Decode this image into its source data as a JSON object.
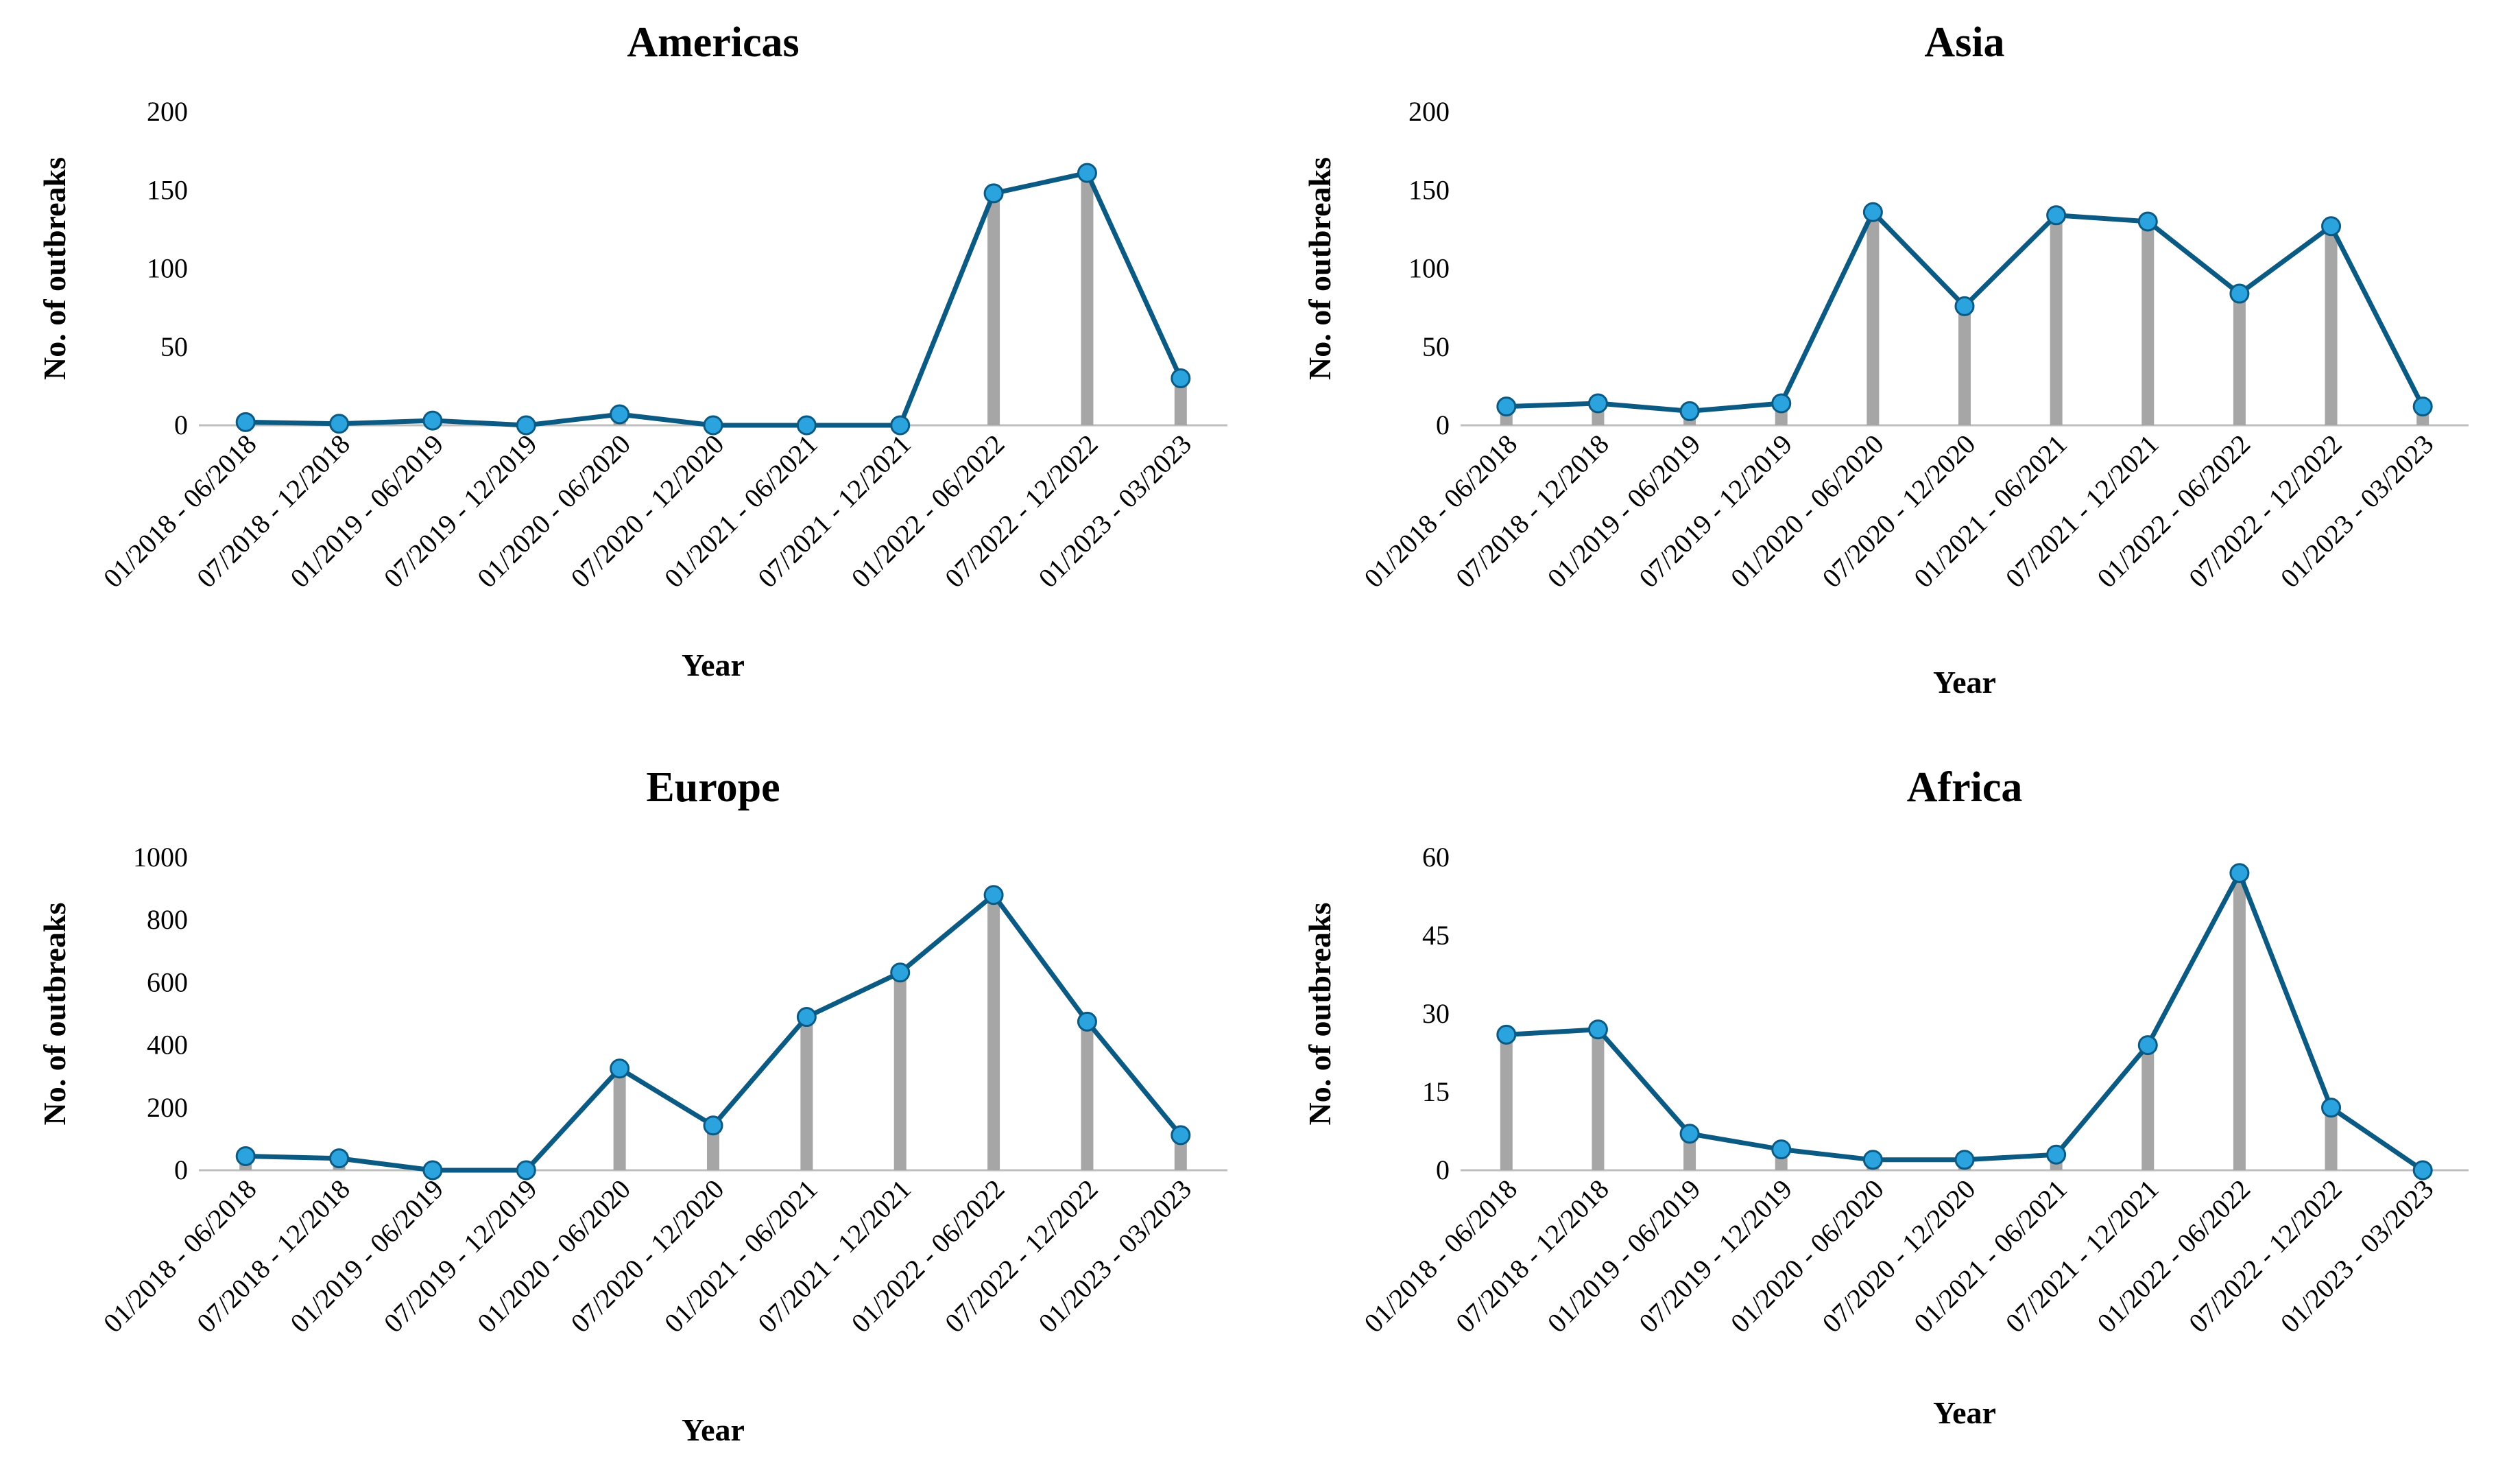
{
  "figure": {
    "colors": {
      "line": "#0b5a84",
      "marker": "#2aa3df",
      "stem": "#a6a6a6",
      "axis": "#bfbfbf"
    }
  },
  "chart_data": [
    {
      "type": "line",
      "title": "Americas",
      "xlabel": "Year",
      "ylabel": "No. of outbreaks",
      "ylim": [
        0,
        200
      ],
      "yticks": [
        0,
        50,
        100,
        150,
        200
      ],
      "grid": false,
      "categories": [
        "01/2018 - 06/2018",
        "07/2018 - 12/2018",
        "01/2019 - 06/2019",
        "07/2019 - 12/2019",
        "01/2020 - 06/2020",
        "07/2020 - 12/2020",
        "01/2021 - 06/2021",
        "07/2021 - 12/2021",
        "01/2022 - 06/2022",
        "07/2022 - 12/2022",
        "01/2023 - 03/2023"
      ],
      "values": [
        2,
        1,
        3,
        0,
        7,
        0,
        0,
        0,
        148,
        161,
        30
      ]
    },
    {
      "type": "line",
      "title": "Asia",
      "xlabel": "Year",
      "ylabel": "No. of outbreaks",
      "ylim": [
        0,
        200
      ],
      "yticks": [
        0,
        50,
        100,
        150,
        200
      ],
      "grid": false,
      "categories": [
        "01/2018 - 06/2018",
        "07/2018 - 12/2018",
        "01/2019 - 06/2019",
        "07/2019 - 12/2019",
        "01/2020 - 06/2020",
        "07/2020 - 12/2020",
        "01/2021 - 06/2021",
        "07/2021 - 12/2021",
        "01/2022 - 06/2022",
        "07/2022 - 12/2022",
        "01/2023 - 03/2023"
      ],
      "values": [
        12,
        14,
        9,
        14,
        136,
        76,
        134,
        130,
        84,
        127,
        12
      ]
    },
    {
      "type": "line",
      "title": "Europe",
      "xlabel": "Year",
      "ylabel": "No. of outbreaks",
      "ylim": [
        0,
        1000
      ],
      "yticks": [
        0,
        200,
        400,
        600,
        800,
        1000
      ],
      "grid": false,
      "categories": [
        "01/2018 - 06/2018",
        "07/2018 - 12/2018",
        "01/2019 - 06/2019",
        "07/2019 - 12/2019",
        "01/2020 - 06/2020",
        "07/2020 - 12/2020",
        "01/2021 - 06/2021",
        "07/2021 - 12/2021",
        "01/2022 - 06/2022",
        "07/2022 - 12/2022",
        "01/2023 - 03/2023"
      ],
      "values": [
        45,
        38,
        0,
        0,
        325,
        143,
        490,
        632,
        880,
        475,
        112
      ]
    },
    {
      "type": "line",
      "title": "Africa",
      "xlabel": "Year",
      "ylabel": "No. of outbreaks",
      "ylim": [
        0,
        60
      ],
      "yticks": [
        0,
        15,
        30,
        45,
        60
      ],
      "grid": false,
      "categories": [
        "01/2018 - 06/2018",
        "07/2018 - 12/2018",
        "01/2019 - 06/2019",
        "07/2019 - 12/2019",
        "01/2020 - 06/2020",
        "07/2020 - 12/2020",
        "01/2021 - 06/2021",
        "07/2021 - 12/2021",
        "01/2022 - 06/2022",
        "07/2022 - 12/2022",
        "01/2023 - 03/2023"
      ],
      "values": [
        26,
        27,
        7,
        4,
        2,
        2,
        3,
        24,
        57,
        12,
        0
      ]
    }
  ]
}
